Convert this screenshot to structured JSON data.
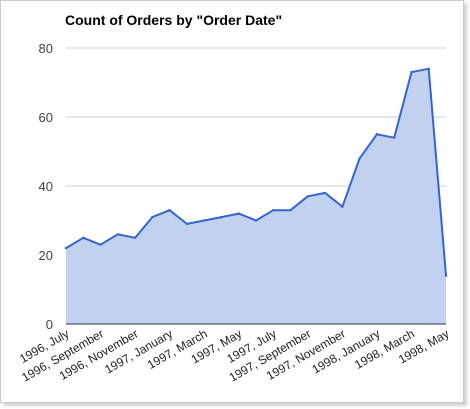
{
  "chart_data": {
    "type": "area",
    "title": "Count of Orders by \"Order Date\"",
    "xlabel": "",
    "ylabel": "",
    "ylim": [
      0,
      80
    ],
    "yticks": [
      "0",
      "20",
      "40",
      "60",
      "80"
    ],
    "x": [
      "1996, July",
      "1996, August",
      "1996, September",
      "1996, October",
      "1996, November",
      "1996, December",
      "1997, January",
      "1997, February",
      "1997, March",
      "1997, April",
      "1997, May",
      "1997, June",
      "1997, July",
      "1997, August",
      "1997, September",
      "1997, October",
      "1997, November",
      "1997, December",
      "1998, January",
      "1998, February",
      "1998, March",
      "1998, April",
      "1998, May"
    ],
    "xtick_labels": [
      "1996, July",
      "1996, September",
      "1996, November",
      "1997, January",
      "1997, March",
      "1997, May",
      "1997, July",
      "1997, September",
      "1997, November",
      "1998, January",
      "1998, March",
      "1998, May"
    ],
    "values": [
      22,
      25,
      23,
      26,
      25,
      31,
      33,
      29,
      30,
      31,
      32,
      30,
      33,
      33,
      37,
      38,
      34,
      48,
      55,
      54,
      73,
      74,
      14
    ],
    "grid": true,
    "legend": "none",
    "line_color": "#3366cc",
    "fill_color": "#c2d1f0",
    "grid_color": "#cccccc"
  }
}
